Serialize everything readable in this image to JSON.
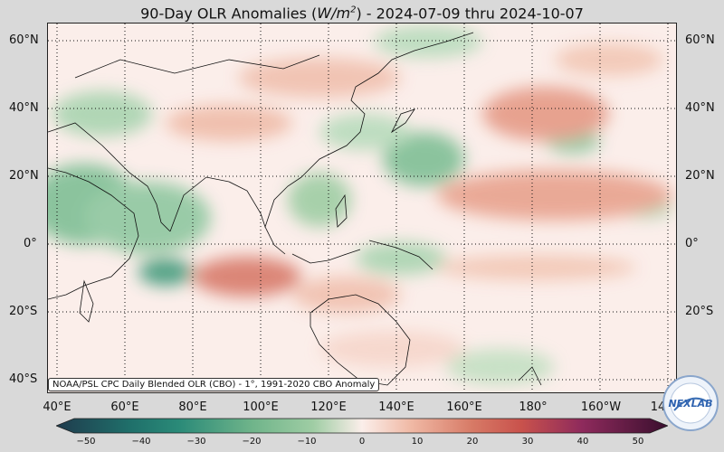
{
  "title": {
    "prefix": "90-Day OLR Anomalies (",
    "unit_base": "W/m",
    "unit_exp": "2",
    "suffix": ") - 2024-07-09 thru 2024-10-07"
  },
  "lat_labels": [
    "60°N",
    "40°N",
    "20°N",
    "0°",
    "20°S",
    "40°S"
  ],
  "lon_labels": [
    "40°E",
    "60°E",
    "80°E",
    "100°E",
    "120°E",
    "140°E",
    "160°E",
    "180°",
    "160°W",
    "14"
  ],
  "credit": "NOAA/PSL CPC Daily Blended OLR (CBO) - 1°, 1991-2020 CBO Anomaly",
  "colorbar": {
    "ticks": [
      "−50",
      "−40",
      "−30",
      "−20",
      "−10",
      "0",
      "10",
      "20",
      "30",
      "40",
      "50"
    ],
    "range": [
      -50,
      50
    ],
    "colors": {
      "negative_extreme": "#1f3b4d",
      "negative_mid": "#2a8a78",
      "negative_light": "#9fcda4",
      "neutral": "#fbeeea",
      "positive_light": "#f0b9a5",
      "positive_mid": "#c9524c",
      "positive_extreme": "#3a0f2e"
    }
  },
  "logo": {
    "text": "NEXLAB"
  }
}
